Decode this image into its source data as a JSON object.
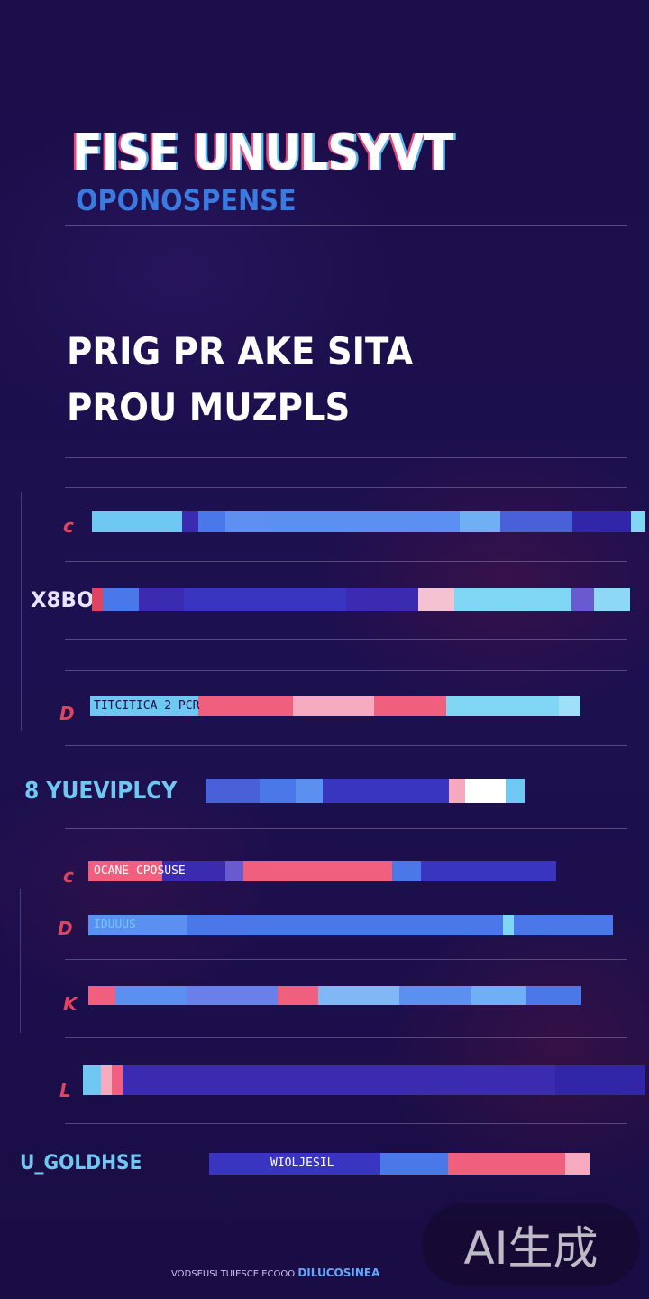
{
  "header": {
    "title": "FISE UNULSYVT",
    "subtitle": "OPONOSPENSE"
  },
  "headline": {
    "line1": "PRIG PR AKE SITA",
    "line2": "PROU MUZPLS"
  },
  "rows": [
    {
      "marker": "c",
      "label": "",
      "level": 1.0,
      "inner_text": ""
    },
    {
      "marker": "",
      "label": "X8BO",
      "level": 0.95,
      "inner_text": ""
    },
    {
      "marker": "D",
      "label": "",
      "level": 0.75,
      "inner_text": "TITCITICA 2 PCR"
    },
    {
      "marker": "",
      "label": "8 YUEVIPLCY",
      "level": 0.6,
      "inner_text": ""
    },
    {
      "marker": "c",
      "label": "",
      "level": 0.72,
      "inner_text": "OCANE CPOSUSE"
    },
    {
      "marker": "D",
      "label": "",
      "level": 0.83,
      "inner_text": "IDUUUS"
    },
    {
      "marker": "K",
      "label": "",
      "level": 0.75,
      "inner_text": ""
    },
    {
      "marker": "L",
      "label": "",
      "level": 1.0,
      "inner_text": ""
    },
    {
      "marker": "",
      "label": "U_GOLDHSE",
      "level": 0.8,
      "inner_text": "WIOLJESIL"
    }
  ],
  "footer": {
    "left": "VODSEUSI TUIESCE ECOOO",
    "right": "DILUCOSINEA"
  },
  "watermark": "AI生成",
  "colors": {
    "background": "#1c0f4a",
    "cyan": "#6fc8f2",
    "blue": "#4a78e8",
    "indigo": "#3a2bb0",
    "pink": "#f0607e",
    "title_blue": "#3b7be0"
  }
}
